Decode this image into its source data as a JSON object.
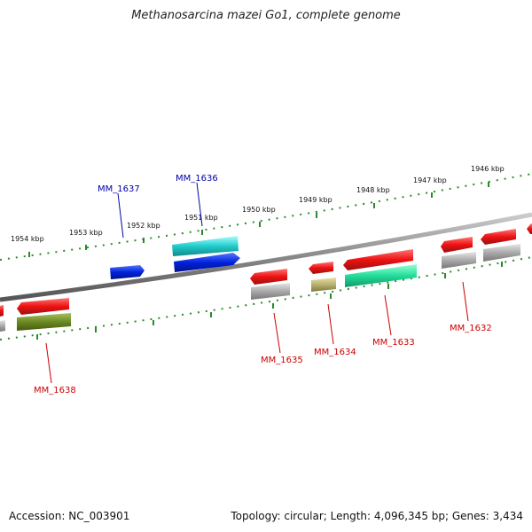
{
  "title": "Methanosarcina mazei Go1, complete genome",
  "footer": {
    "accession": "Accession: NC_003901",
    "summary": "Topology: circular; Length: 4,096,345 bp; Genes: 3,434"
  },
  "scale": {
    "tick_labels": [
      "1954 kbp",
      "1953 kbp",
      "1952 kbp",
      "1951 kbp",
      "1950 kbp",
      "1949 kbp",
      "1948 kbp",
      "1947 kbp",
      "1946 kbp"
    ]
  },
  "genes": {
    "top_labels": [
      {
        "id": "MM_1637",
        "color": "#0000aa"
      },
      {
        "id": "MM_1636",
        "color": "#0000aa"
      }
    ],
    "bottom_labels": [
      {
        "id": "MM_1638",
        "color": "#cc0000"
      },
      {
        "id": "MM_1635",
        "color": "#cc0000"
      },
      {
        "id": "MM_1634",
        "color": "#cc0000"
      },
      {
        "id": "MM_1633",
        "color": "#cc0000"
      },
      {
        "id": "MM_1632",
        "color": "#cc0000"
      }
    ]
  },
  "colors": {
    "backbone": "#888888",
    "scale_ticks": "#2a8a2a",
    "forward_gene": "#0022dd",
    "forward_gene_alt": "#22cccc",
    "reverse_gene": "#ee1111",
    "gray_feature": "#aaaaaa",
    "olive_feature": "#6b8a22",
    "khaki_feature": "#b8b070",
    "teal_feature": "#22dd99"
  }
}
